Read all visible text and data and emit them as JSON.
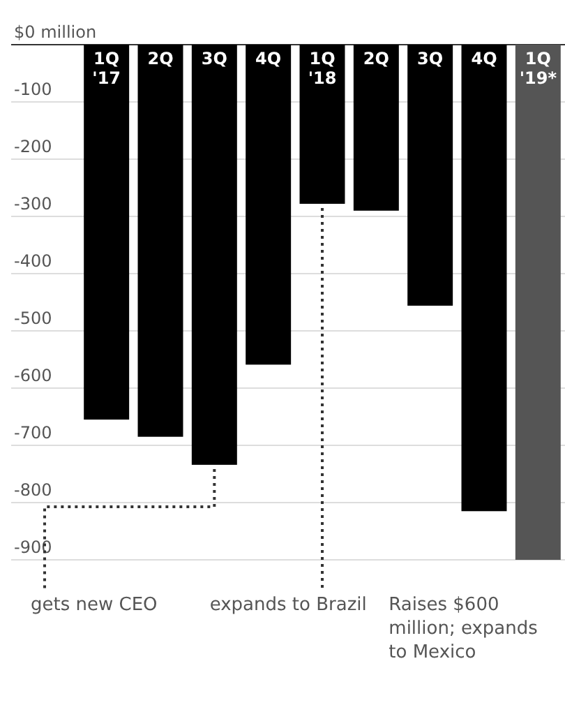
{
  "chart_data": {
    "type": "bar",
    "categories": [
      "1Q '17",
      "2Q",
      "3Q",
      "4Q",
      "1Q '18",
      "2Q",
      "3Q",
      "4Q",
      "1Q '19*"
    ],
    "values": [
      -655,
      -685,
      -734,
      -559,
      -278,
      -290,
      -456,
      -815,
      -900
    ],
    "colors": [
      "#000000",
      "#000000",
      "#000000",
      "#000000",
      "#000000",
      "#000000",
      "#000000",
      "#000000",
      "#555555"
    ],
    "ylim": [
      -900,
      0
    ],
    "yticks": [
      {
        "value": 0,
        "label": "$0 million"
      },
      -100,
      -200,
      -300,
      -400,
      -500,
      -600,
      -700,
      -800,
      -900
    ],
    "grid": "y",
    "annotations": [
      {
        "text": "gets new CEO",
        "x": "3Q",
        "y": -734
      },
      {
        "text": "expands to Brazil",
        "x": "1Q '18",
        "y": -278
      },
      "Raises $600 million; expands to Mexico"
    ]
  }
}
